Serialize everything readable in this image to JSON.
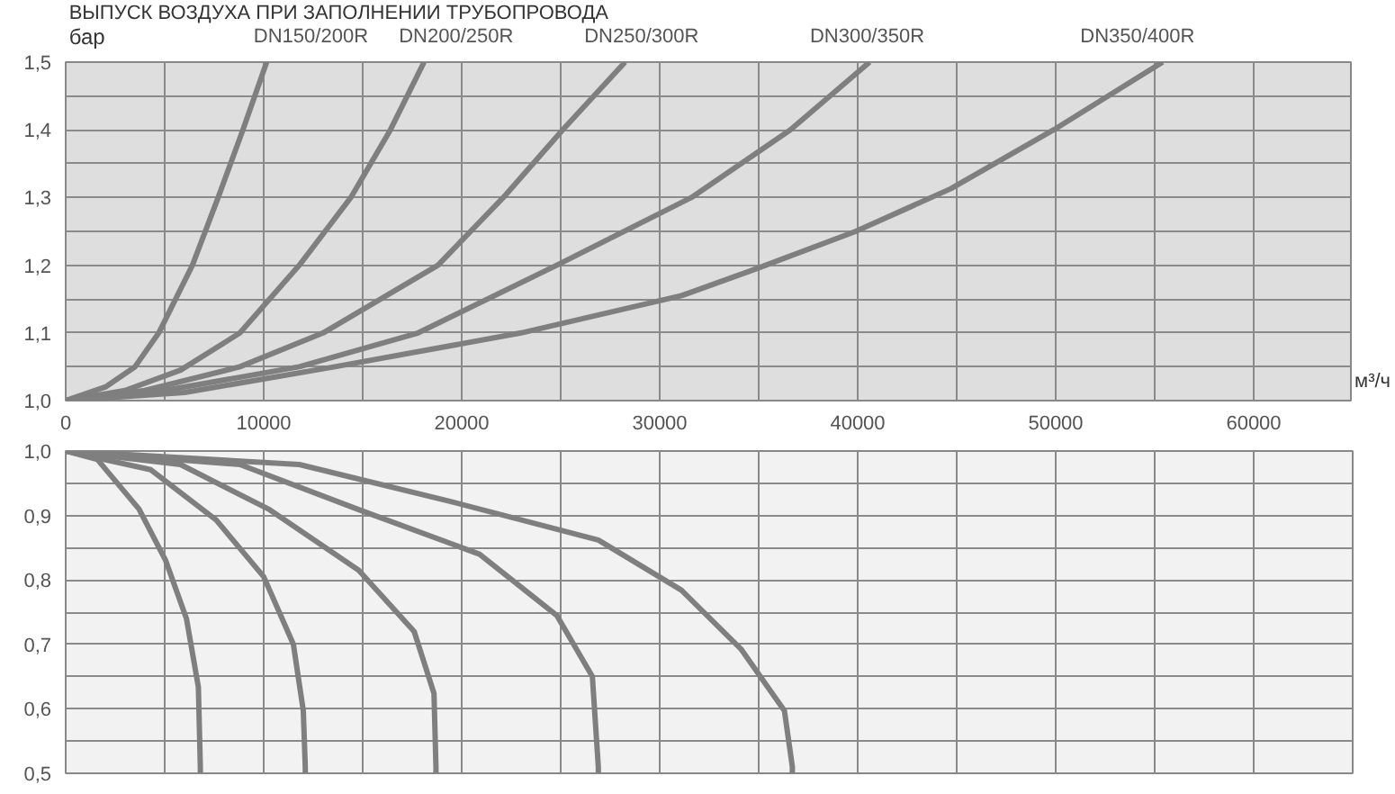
{
  "chart_data": [
    {
      "type": "line",
      "title": "ВЫПУСК ВОЗДУХА ПРИ ЗАПОЛНЕНИИ ТРУБОПРОВОДА",
      "xlabel": "м³/ч",
      "ylabel": "бар",
      "grid": true,
      "xlim": [
        0,
        65000
      ],
      "ylim": [
        1.0,
        1.5
      ],
      "xticks": [
        0,
        {
          "value": 5000,
          "label": null
        },
        10000,
        {
          "value": 15000,
          "label": null
        },
        20000,
        {
          "value": 25000,
          "label": null
        },
        30000,
        {
          "value": 35000,
          "label": null
        },
        40000,
        {
          "value": 45000,
          "label": null
        },
        50000,
        {
          "value": 55000,
          "label": null
        },
        60000,
        {
          "value": 65000,
          "label": null
        }
      ],
      "yticks": [
        {
          "value": 1.0,
          "label": "1,0"
        },
        {
          "value": 1.05,
          "label": null
        },
        {
          "value": 1.1,
          "label": "1,1"
        },
        {
          "value": 1.15,
          "label": null
        },
        {
          "value": 1.2,
          "label": "1,2"
        },
        {
          "value": 1.25,
          "label": null
        },
        {
          "value": 1.3,
          "label": "1,3"
        },
        {
          "value": 1.35,
          "label": null
        },
        {
          "value": 1.4,
          "label": "1,4"
        },
        {
          "value": 1.45,
          "label": null
        },
        {
          "value": 1.5,
          "label": "1,5"
        }
      ],
      "series": [
        {
          "name": "DN150/200R",
          "color": "#7f7f7f",
          "x": [
            0,
            2000,
            3500,
            4700,
            6400,
            7700,
            8950,
            10150
          ],
          "values": [
            1.0,
            1.02,
            1.05,
            1.1,
            1.2,
            1.3,
            1.4,
            1.5
          ]
        },
        {
          "name": "DN200/250R",
          "color": "#7f7f7f",
          "x": [
            0,
            3000,
            5800,
            8800,
            11800,
            14400,
            16400,
            18100
          ],
          "values": [
            1.0,
            1.015,
            1.045,
            1.1,
            1.2,
            1.3,
            1.4,
            1.5
          ]
        },
        {
          "name": "DN250/300R",
          "color": "#7f7f7f",
          "x": [
            0,
            4000,
            8800,
            13000,
            18800,
            22100,
            25100,
            28250
          ],
          "values": [
            1.0,
            1.015,
            1.05,
            1.1,
            1.2,
            1.3,
            1.4,
            1.5
          ]
        },
        {
          "name": "DN300/350R",
          "color": "#7f7f7f",
          "x": [
            0,
            5000,
            11800,
            17800,
            24800,
            31600,
            36600,
            40600
          ],
          "values": [
            1.0,
            1.015,
            1.05,
            1.1,
            1.2,
            1.3,
            1.4,
            1.5
          ]
        },
        {
          "name": "DN350/400R",
          "color": "#7f7f7f",
          "x": [
            0,
            6000,
            13600,
            23000,
            31100,
            34900,
            39900,
            44700,
            49900,
            55400
          ],
          "values": [
            1.0,
            1.012,
            1.05,
            1.1,
            1.155,
            1.195,
            1.25,
            1.313,
            1.4,
            1.5
          ]
        }
      ]
    },
    {
      "type": "line",
      "grid": true,
      "tick_labels": "y",
      "xlim": [
        0,
        65000
      ],
      "ylim": [
        0.5,
        1.0
      ],
      "xticks": [
        0,
        5000,
        10000,
        15000,
        20000,
        25000,
        30000,
        35000,
        40000,
        45000,
        50000,
        55000,
        60000,
        65000
      ],
      "yticks": [
        {
          "value": 0.5,
          "label": "0,5"
        },
        {
          "value": 0.55,
          "label": null
        },
        {
          "value": 0.6,
          "label": "0,6"
        },
        {
          "value": 0.65,
          "label": null
        },
        {
          "value": 0.7,
          "label": "0,7"
        },
        {
          "value": 0.75,
          "label": null
        },
        {
          "value": 0.8,
          "label": "0,8"
        },
        {
          "value": 0.85,
          "label": null
        },
        {
          "value": 0.9,
          "label": "0,9"
        },
        {
          "value": 0.95,
          "label": null
        },
        {
          "value": 1.0,
          "label": "1,0"
        }
      ],
      "series": [
        {
          "color": "#7f7f7f",
          "x": [
            0,
            1600,
            3700,
            5050,
            6100,
            6700,
            6800,
            6800
          ],
          "values": [
            1.0,
            0.987,
            0.91,
            0.83,
            0.74,
            0.634,
            0.51,
            0.5
          ]
        },
        {
          "color": "#7f7f7f",
          "x": [
            0,
            4300,
            7600,
            10000,
            11500,
            12000,
            12100,
            12100
          ],
          "values": [
            1.0,
            0.971,
            0.893,
            0.805,
            0.7,
            0.597,
            0.51,
            0.5
          ]
        },
        {
          "color": "#7f7f7f",
          "x": [
            0,
            5800,
            10300,
            14800,
            17600,
            18600,
            18700,
            18700
          ],
          "values": [
            1.0,
            0.979,
            0.909,
            0.815,
            0.72,
            0.624,
            0.51,
            0.5
          ]
        },
        {
          "color": "#7f7f7f",
          "x": [
            0,
            8800,
            14800,
            20900,
            24800,
            26600,
            26900,
            26900
          ],
          "values": [
            1.0,
            0.979,
            0.909,
            0.84,
            0.745,
            0.65,
            0.51,
            0.5
          ]
        },
        {
          "color": "#7f7f7f",
          "x": [
            0,
            11800,
            19400,
            26900,
            31100,
            34100,
            36300,
            36700,
            36700
          ],
          "values": [
            1.0,
            0.979,
            0.922,
            0.862,
            0.784,
            0.693,
            0.597,
            0.51,
            0.5
          ]
        }
      ]
    }
  ]
}
